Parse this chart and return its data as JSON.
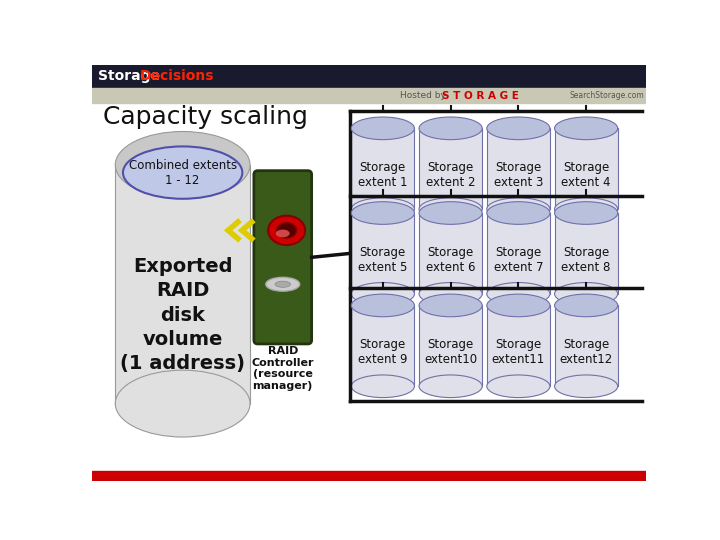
{
  "title": "Capacity scaling",
  "bg_color": "#f0f0f0",
  "header_bg": "#1a1a2e",
  "subheader_bg": "#c8c8b4",
  "bottom_bar_color": "#cc0000",
  "extents": [
    [
      "Storage\nextent 1",
      "Storage\nextent 2",
      "Storage\nextent 3",
      "Storage\nextent 4"
    ],
    [
      "Storage\nextent 5",
      "Storage\nextent 6",
      "Storage\nextent 7",
      "Storage\nextent 8"
    ],
    [
      "Storage\nextent 9",
      "Storage\nextent10",
      "Storage\nextent11",
      "Storage\nextent12"
    ]
  ],
  "main_label": "Exported\nRAID\ndisk\nvolume\n(1 address)",
  "combined_label": "Combined extents\n1 - 12",
  "raid_label": "RAID\nController\n(resource\nmanager)",
  "main_cyl_body": "#e0e0e0",
  "main_cyl_top": "#c8c8c8",
  "main_cyl_edge": "#999999",
  "stor_cyl_body": "#e0e0ea",
  "stor_cyl_top": "#b8c0dc",
  "stor_cyl_edge": "#7070aa",
  "ellipse_fill": "#c0c8e8",
  "ellipse_edge": "#5050aa",
  "raid_fill": "#3a5a1a",
  "raid_edge": "#223310"
}
